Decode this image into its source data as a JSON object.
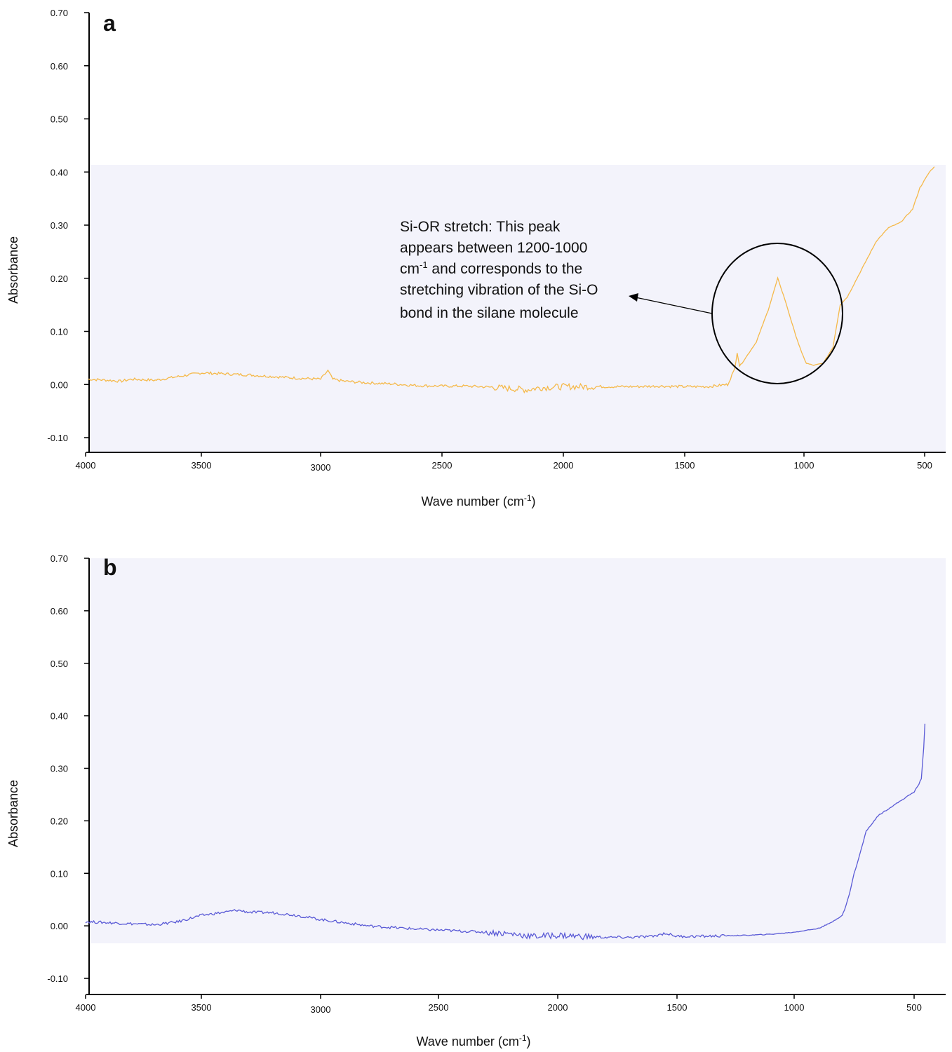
{
  "chart_data": [
    {
      "type": "line",
      "panel_label": "a",
      "xlabel": "Wave number (cm",
      "xlabel_sup": "-1",
      "xlabel_end": ")",
      "ylabel": "Absorbance",
      "xlim": [
        4000,
        450
      ],
      "ylim": [
        -0.1,
        0.7
      ],
      "x_ticks": [
        "4000",
        "3500",
        "3000",
        "2500",
        "2000",
        "1500",
        "1000",
        "500"
      ],
      "y_ticks": [
        "0.70",
        "0.60",
        "0.50",
        "0.40",
        "0.30",
        "0.20",
        "0.10",
        "0.00",
        "-0.10"
      ],
      "color": "#f5b94a",
      "background": "#f3f3fb",
      "series": [
        {
          "x": [
            3990,
            3900,
            3850,
            3800,
            3700,
            3600,
            3500,
            3450,
            3400,
            3300,
            3200,
            3100,
            3000,
            2970,
            2950,
            2900,
            2800,
            2700,
            2600,
            2500,
            2400,
            2300,
            2200,
            2150,
            2100,
            2000,
            1900,
            1800,
            1700,
            1600,
            1500,
            1400,
            1320,
            1290,
            1280,
            1270,
            1260,
            1200,
            1150,
            1110,
            1080,
            1040,
            1010,
            990,
            960,
            920,
            880,
            850,
            820,
            780,
            700,
            650,
            600,
            550,
            520,
            480,
            460
          ],
          "y": [
            0.01,
            0.008,
            0.006,
            0.01,
            0.008,
            0.015,
            0.022,
            0.021,
            0.02,
            0.018,
            0.015,
            0.012,
            0.01,
            0.026,
            0.01,
            0.006,
            0.003,
            0.001,
            -0.002,
            -0.003,
            -0.003,
            -0.005,
            -0.008,
            -0.01,
            -0.006,
            -0.004,
            -0.004,
            -0.004,
            -0.004,
            -0.003,
            -0.004,
            -0.004,
            0.0,
            0.03,
            0.06,
            0.035,
            0.04,
            0.08,
            0.14,
            0.2,
            0.16,
            0.1,
            0.06,
            0.04,
            0.036,
            0.04,
            0.07,
            0.15,
            0.165,
            0.2,
            0.27,
            0.295,
            0.305,
            0.33,
            0.37,
            0.4,
            0.41
          ]
        }
      ],
      "annotation": {
        "line1": "Si-OR stretch: This peak",
        "line2": "appears between 1200-1000",
        "line3_pre": "cm",
        "line3_sup": "-1",
        "line3_post": " and corresponds to the",
        "line4": "stretching vibration of the Si-O",
        "line5": "bond in the silane molecule"
      }
    },
    {
      "type": "line",
      "panel_label": "b",
      "xlabel": "Wave number (cm",
      "xlabel_sup": "-1",
      "xlabel_end": ")",
      "ylabel": "Absorbance",
      "xlim": [
        4000,
        450
      ],
      "ylim": [
        -0.1,
        0.7
      ],
      "x_ticks": [
        "4000",
        "3500",
        "3000",
        "2500",
        "2000",
        "1500",
        "1000",
        "500"
      ],
      "y_ticks": [
        "0.70",
        "0.60",
        "0.50",
        "0.40",
        "0.30",
        "0.20",
        "0.10",
        "0.00",
        "-0.10"
      ],
      "color": "#5a5ad6",
      "background": "#f3f3fb",
      "series": [
        {
          "x": [
            4000,
            3900,
            3800,
            3700,
            3600,
            3500,
            3400,
            3350,
            3300,
            3200,
            3100,
            3000,
            2900,
            2800,
            2700,
            2600,
            2500,
            2400,
            2300,
            2200,
            2100,
            2000,
            1900,
            1800,
            1700,
            1600,
            1550,
            1500,
            1400,
            1300,
            1200,
            1100,
            1000,
            900,
            850,
            800,
            790,
            770,
            750,
            730,
            700,
            650,
            600,
            550,
            500,
            480,
            470,
            460,
            455
          ],
          "y": [
            0.008,
            0.006,
            0.004,
            0.002,
            0.008,
            0.02,
            0.026,
            0.03,
            0.026,
            0.025,
            0.02,
            0.012,
            0.006,
            0.0,
            -0.003,
            -0.006,
            -0.008,
            -0.01,
            -0.012,
            -0.015,
            -0.02,
            -0.018,
            -0.02,
            -0.022,
            -0.022,
            -0.02,
            -0.014,
            -0.02,
            -0.02,
            -0.019,
            -0.018,
            -0.016,
            -0.012,
            -0.005,
            0.005,
            0.02,
            0.03,
            0.06,
            0.1,
            0.13,
            0.18,
            0.21,
            0.225,
            0.24,
            0.255,
            0.27,
            0.28,
            0.34,
            0.385
          ]
        }
      ]
    }
  ]
}
